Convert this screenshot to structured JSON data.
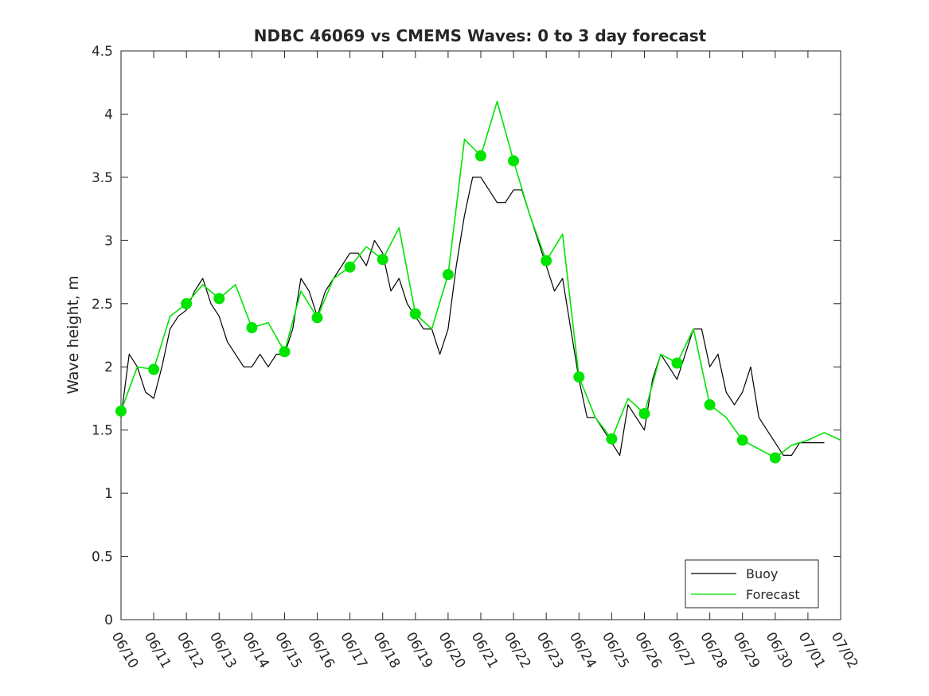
{
  "chart_data": {
    "type": "line",
    "title": "NDBC 46069 vs CMEMS Waves: 0 to 3 day forecast",
    "xlabel": "",
    "ylabel": "Wave height, m",
    "xlim": [
      "06/10",
      "07/02"
    ],
    "ylim": [
      0,
      4.5
    ],
    "x_ticks": [
      "06/10",
      "06/11",
      "06/12",
      "06/13",
      "06/14",
      "06/15",
      "06/16",
      "06/17",
      "06/18",
      "06/19",
      "06/20",
      "06/21",
      "06/22",
      "06/23",
      "06/24",
      "06/25",
      "06/26",
      "06/27",
      "06/28",
      "06/29",
      "06/30",
      "07/01",
      "07/02"
    ],
    "y_ticks": [
      "0",
      "0.5",
      "1",
      "1.5",
      "2",
      "2.5",
      "3",
      "3.5",
      "4",
      "4.5"
    ],
    "grid": false,
    "legend_position": "bottom-right",
    "legend": [
      "Buoy",
      "Forecast"
    ],
    "colors": {
      "buoy": "#000000",
      "forecast": "#00e400",
      "axis": "#262626"
    },
    "series": [
      {
        "name": "Buoy",
        "x": [
          "06/10 00:00",
          "06/10 06:00",
          "06/10 12:00",
          "06/10 18:00",
          "06/11 00:00",
          "06/11 06:00",
          "06/11 12:00",
          "06/11 18:00",
          "06/12 00:00",
          "06/12 06:00",
          "06/12 12:00",
          "06/12 18:00",
          "06/13 00:00",
          "06/13 06:00",
          "06/13 12:00",
          "06/13 18:00",
          "06/14 00:00",
          "06/14 06:00",
          "06/14 12:00",
          "06/14 18:00",
          "06/15 00:00",
          "06/15 06:00",
          "06/15 12:00",
          "06/15 18:00",
          "06/16 00:00",
          "06/16 06:00",
          "06/16 12:00",
          "06/16 18:00",
          "06/17 00:00",
          "06/17 06:00",
          "06/17 12:00",
          "06/17 18:00",
          "06/18 00:00",
          "06/18 06:00",
          "06/18 12:00",
          "06/18 18:00",
          "06/19 00:00",
          "06/19 06:00",
          "06/19 12:00",
          "06/19 18:00",
          "06/20 00:00",
          "06/20 06:00",
          "06/20 12:00",
          "06/20 18:00",
          "06/21 00:00",
          "06/21 06:00",
          "06/21 12:00",
          "06/21 18:00",
          "06/22 00:00",
          "06/22 06:00",
          "06/22 12:00",
          "06/22 18:00",
          "06/23 00:00",
          "06/23 06:00",
          "06/23 12:00",
          "06/23 18:00",
          "06/24 00:00",
          "06/24 06:00",
          "06/24 12:00",
          "06/24 18:00",
          "06/25 00:00",
          "06/25 06:00",
          "06/25 12:00",
          "06/25 18:00",
          "06/26 00:00",
          "06/26 06:00",
          "06/26 12:00",
          "06/26 18:00",
          "06/27 00:00",
          "06/27 06:00",
          "06/27 12:00",
          "06/27 18:00",
          "06/28 00:00",
          "06/28 06:00",
          "06/28 12:00",
          "06/28 18:00",
          "06/29 00:00",
          "06/29 06:00",
          "06/29 12:00",
          "06/29 18:00",
          "06/30 00:00",
          "06/30 06:00",
          "06/30 12:00",
          "06/30 18:00",
          "07/01 00:00",
          "07/01 06:00",
          "07/01 12:00"
        ],
        "values": [
          1.6,
          2.1,
          2.0,
          1.8,
          1.75,
          2.0,
          2.3,
          2.4,
          2.45,
          2.6,
          2.7,
          2.5,
          2.4,
          2.2,
          2.1,
          2.0,
          2.0,
          2.1,
          2.0,
          2.1,
          2.1,
          2.3,
          2.7,
          2.6,
          2.4,
          2.6,
          2.7,
          2.8,
          2.9,
          2.9,
          2.8,
          3.0,
          2.9,
          2.6,
          2.7,
          2.5,
          2.4,
          2.3,
          2.3,
          2.1,
          2.3,
          2.8,
          3.2,
          3.5,
          3.5,
          3.4,
          3.3,
          3.3,
          3.4,
          3.4,
          3.2,
          3.0,
          2.8,
          2.6,
          2.7,
          2.3,
          1.9,
          1.6,
          1.6,
          1.5,
          1.4,
          1.3,
          1.7,
          1.6,
          1.5,
          1.9,
          2.1,
          2.0,
          1.9,
          2.1,
          2.3,
          2.3,
          2.0,
          2.1,
          1.8,
          1.7,
          1.8,
          2.0,
          1.6,
          1.5,
          1.4,
          1.3,
          1.3,
          1.4,
          1.4,
          1.4,
          1.4
        ]
      },
      {
        "name": "Forecast",
        "x": [
          "06/10 00:00",
          "06/10 12:00",
          "06/11 00:00",
          "06/11 12:00",
          "06/12 00:00",
          "06/12 12:00",
          "06/13 00:00",
          "06/13 12:00",
          "06/14 00:00",
          "06/14 12:00",
          "06/15 00:00",
          "06/15 12:00",
          "06/16 00:00",
          "06/16 12:00",
          "06/17 00:00",
          "06/17 12:00",
          "06/18 00:00",
          "06/18 12:00",
          "06/19 00:00",
          "06/19 12:00",
          "06/20 00:00",
          "06/20 12:00",
          "06/21 00:00",
          "06/21 12:00",
          "06/22 00:00",
          "06/22 12:00",
          "06/23 00:00",
          "06/23 12:00",
          "06/24 00:00",
          "06/24 12:00",
          "06/25 00:00",
          "06/25 12:00",
          "06/26 00:00",
          "06/26 12:00",
          "06/27 00:00",
          "06/27 12:00",
          "06/28 00:00",
          "06/28 12:00",
          "06/29 00:00",
          "06/29 12:00",
          "06/30 00:00",
          "06/30 12:00",
          "07/01 00:00",
          "07/01 12:00",
          "07/02 00:00"
        ],
        "values": [
          1.65,
          2.0,
          1.98,
          2.4,
          2.5,
          2.65,
          2.54,
          2.65,
          2.31,
          2.35,
          2.12,
          2.6,
          2.39,
          2.7,
          2.79,
          2.95,
          2.85,
          3.1,
          2.42,
          2.3,
          2.73,
          3.8,
          3.67,
          4.1,
          3.63,
          3.2,
          2.84,
          3.05,
          1.92,
          1.6,
          1.43,
          1.75,
          1.63,
          2.1,
          2.03,
          2.3,
          1.7,
          1.6,
          1.42,
          1.35,
          1.28,
          1.38,
          1.42,
          1.48,
          1.42
        ],
        "markers": {
          "x": [
            "06/10",
            "06/11",
            "06/12",
            "06/13",
            "06/14",
            "06/15",
            "06/16",
            "06/17",
            "06/18",
            "06/19",
            "06/20",
            "06/21",
            "06/22",
            "06/23",
            "06/24",
            "06/25",
            "06/26",
            "06/27",
            "06/28",
            "06/29",
            "06/30"
          ],
          "values": [
            1.65,
            1.98,
            2.5,
            2.54,
            2.31,
            2.12,
            2.39,
            2.79,
            2.85,
            2.42,
            2.73,
            3.67,
            3.63,
            2.84,
            1.92,
            1.43,
            1.63,
            2.03,
            1.7,
            1.42,
            1.28
          ]
        }
      }
    ]
  }
}
